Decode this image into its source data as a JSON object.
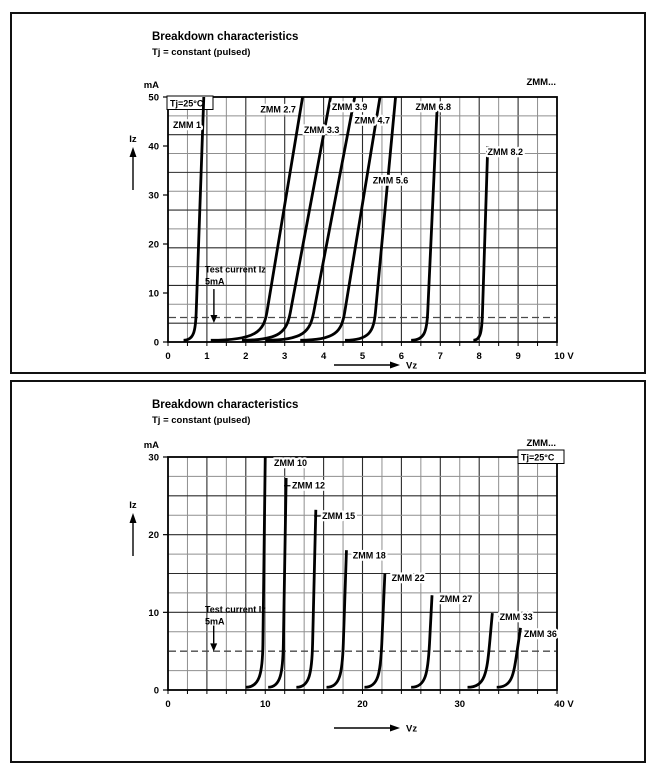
{
  "page": {
    "background": "#ffffff",
    "panel_border_color": "#111111"
  },
  "chart_data": [
    {
      "type": "line",
      "title": "Breakdown characteristics",
      "subtitle": "Tj = constant (pulsed)",
      "family_label": "ZMM...",
      "condition_label": "Tj=25°C",
      "xlabel": "Vz",
      "ylabel": "Iz",
      "x_unit": "V",
      "y_unit": "mA",
      "xlim": [
        0,
        10
      ],
      "ylim": [
        0,
        50
      ],
      "x_tick_values": [
        0,
        1,
        2,
        3,
        4,
        5,
        6,
        7,
        8,
        9,
        10
      ],
      "x_tick_labels": [
        "0",
        "1",
        "2",
        "3",
        "4",
        "5",
        "6",
        "7",
        "8",
        "9",
        "10 V"
      ],
      "y_tick_values": [
        0,
        10,
        20,
        30,
        40,
        50
      ],
      "grid": {
        "x_step_v": 0.5,
        "y_divisions": 13,
        "legend_position": "none",
        "grid_on": true
      },
      "test_current": {
        "line1": "Test current Iz",
        "line2": "5mA",
        "level_mA": 5,
        "text_v": 0.95,
        "text_i": 14.2,
        "arrow_v": 1.18,
        "arrow_from_i": 10.8,
        "arrow_to_i": 5.5
      },
      "curves": [
        {
          "label": "ZMM 1",
          "tail_v": 0.4,
          "v_at_5mA": 0.72,
          "v_at_top": 0.92,
          "i_top": 50,
          "label_v": 0.13,
          "label_i": 44.3,
          "anchor": "start"
        },
        {
          "label": "ZMM 2.7",
          "tail_v": 1.1,
          "v_at_5mA": 2.52,
          "v_at_top": 3.46,
          "i_top": 50,
          "label_v": 2.83,
          "label_i": 47.4,
          "anchor": "middle"
        },
        {
          "label": "ZMM 3.3",
          "tail_v": 1.9,
          "v_at_5mA": 3.12,
          "v_at_top": 4.18,
          "i_top": 50,
          "label_v": 3.95,
          "label_i": 43.3,
          "anchor": "middle"
        },
        {
          "label": "ZMM 3.9",
          "tail_v": 2.5,
          "v_at_5mA": 3.72,
          "v_at_top": 4.8,
          "i_top": 50,
          "label_v": 4.67,
          "label_i": 48.0,
          "anchor": "middle"
        },
        {
          "label": "ZMM 4.7",
          "tail_v": 3.4,
          "v_at_5mA": 4.52,
          "v_at_top": 5.45,
          "i_top": 50,
          "label_v": 5.25,
          "label_i": 45.2,
          "anchor": "middle"
        },
        {
          "label": "ZMM 5.6",
          "tail_v": 4.55,
          "v_at_5mA": 5.32,
          "v_at_top": 5.85,
          "i_top": 50,
          "label_v": 5.72,
          "label_i": 33.0,
          "anchor": "middle"
        },
        {
          "label": "ZMM 6.8",
          "tail_v": 6.25,
          "v_at_5mA": 6.67,
          "v_at_top": 6.92,
          "i_top": 48,
          "label_v": 6.82,
          "label_i": 48.0,
          "anchor": "middle"
        },
        {
          "label": "ZMM 8.2",
          "tail_v": 7.85,
          "v_at_5mA": 8.08,
          "v_at_top": 8.22,
          "i_top": 40,
          "label_v": 8.67,
          "label_i": 38.8,
          "anchor": "middle"
        }
      ]
    },
    {
      "type": "line",
      "title": "Breakdown characteristics",
      "subtitle": "Tj = constant (pulsed)",
      "family_label": "ZMM...",
      "condition_label": "Tj=25°C",
      "xlabel": "Vz",
      "ylabel": "Iz",
      "x_unit": "V",
      "y_unit": "mA",
      "xlim": [
        0,
        40
      ],
      "ylim": [
        0,
        30
      ],
      "x_tick_values": [
        0,
        10,
        20,
        30,
        40
      ],
      "x_tick_labels": [
        "0",
        "10",
        "20",
        "30",
        "40 V"
      ],
      "y_tick_values": [
        0,
        10,
        20,
        30
      ],
      "grid": {
        "x_step_v": 2,
        "y_divisions": 12,
        "legend_position": "none",
        "grid_on": true
      },
      "test_current": {
        "line1": "Test current Iz",
        "line2": "5mA",
        "level_mA": 5,
        "text_v": 3.8,
        "text_i": 10.0,
        "arrow_v": 4.7,
        "arrow_from_i": 8.3,
        "arrow_to_i": 6.0
      },
      "curves": [
        {
          "label": "ZMM 10",
          "tail_v": 8.0,
          "v_at_5mA": 9.75,
          "v_at_top": 10.0,
          "i_top": 30.0,
          "label_v": 10.9,
          "label_i": 29.2,
          "anchor": "start"
        },
        {
          "label": "ZMM 12",
          "tail_v": 10.3,
          "v_at_5mA": 11.85,
          "v_at_top": 12.15,
          "i_top": 27.3,
          "label_v": 12.75,
          "label_i": 26.3,
          "anchor": "start",
          "leader": true
        },
        {
          "label": "ZMM 15",
          "tail_v": 13.2,
          "v_at_5mA": 14.85,
          "v_at_top": 15.2,
          "i_top": 23.2,
          "label_v": 15.85,
          "label_i": 22.4,
          "anchor": "start",
          "leader": true
        },
        {
          "label": "ZMM 18",
          "tail_v": 16.3,
          "v_at_5mA": 18.0,
          "v_at_top": 18.35,
          "i_top": 18.0,
          "label_v": 19.0,
          "label_i": 17.3,
          "anchor": "start"
        },
        {
          "label": "ZMM 22",
          "tail_v": 20.2,
          "v_at_5mA": 21.95,
          "v_at_top": 22.3,
          "i_top": 15.0,
          "label_v": 23.0,
          "label_i": 14.4,
          "anchor": "start"
        },
        {
          "label": "ZMM 27",
          "tail_v": 25.0,
          "v_at_5mA": 26.85,
          "v_at_top": 27.15,
          "i_top": 12.2,
          "label_v": 27.9,
          "label_i": 11.7,
          "anchor": "start"
        },
        {
          "label": "ZMM 33",
          "tail_v": 30.8,
          "v_at_5mA": 33.0,
          "v_at_top": 33.35,
          "i_top": 9.9,
          "label_v": 34.1,
          "label_i": 9.4,
          "anchor": "start"
        },
        {
          "label": "ZMM 36",
          "tail_v": 33.8,
          "v_at_5mA": 35.9,
          "v_at_top": 36.25,
          "i_top": 8.0,
          "label_v": 36.6,
          "label_i": 7.2,
          "anchor": "start"
        }
      ]
    }
  ]
}
